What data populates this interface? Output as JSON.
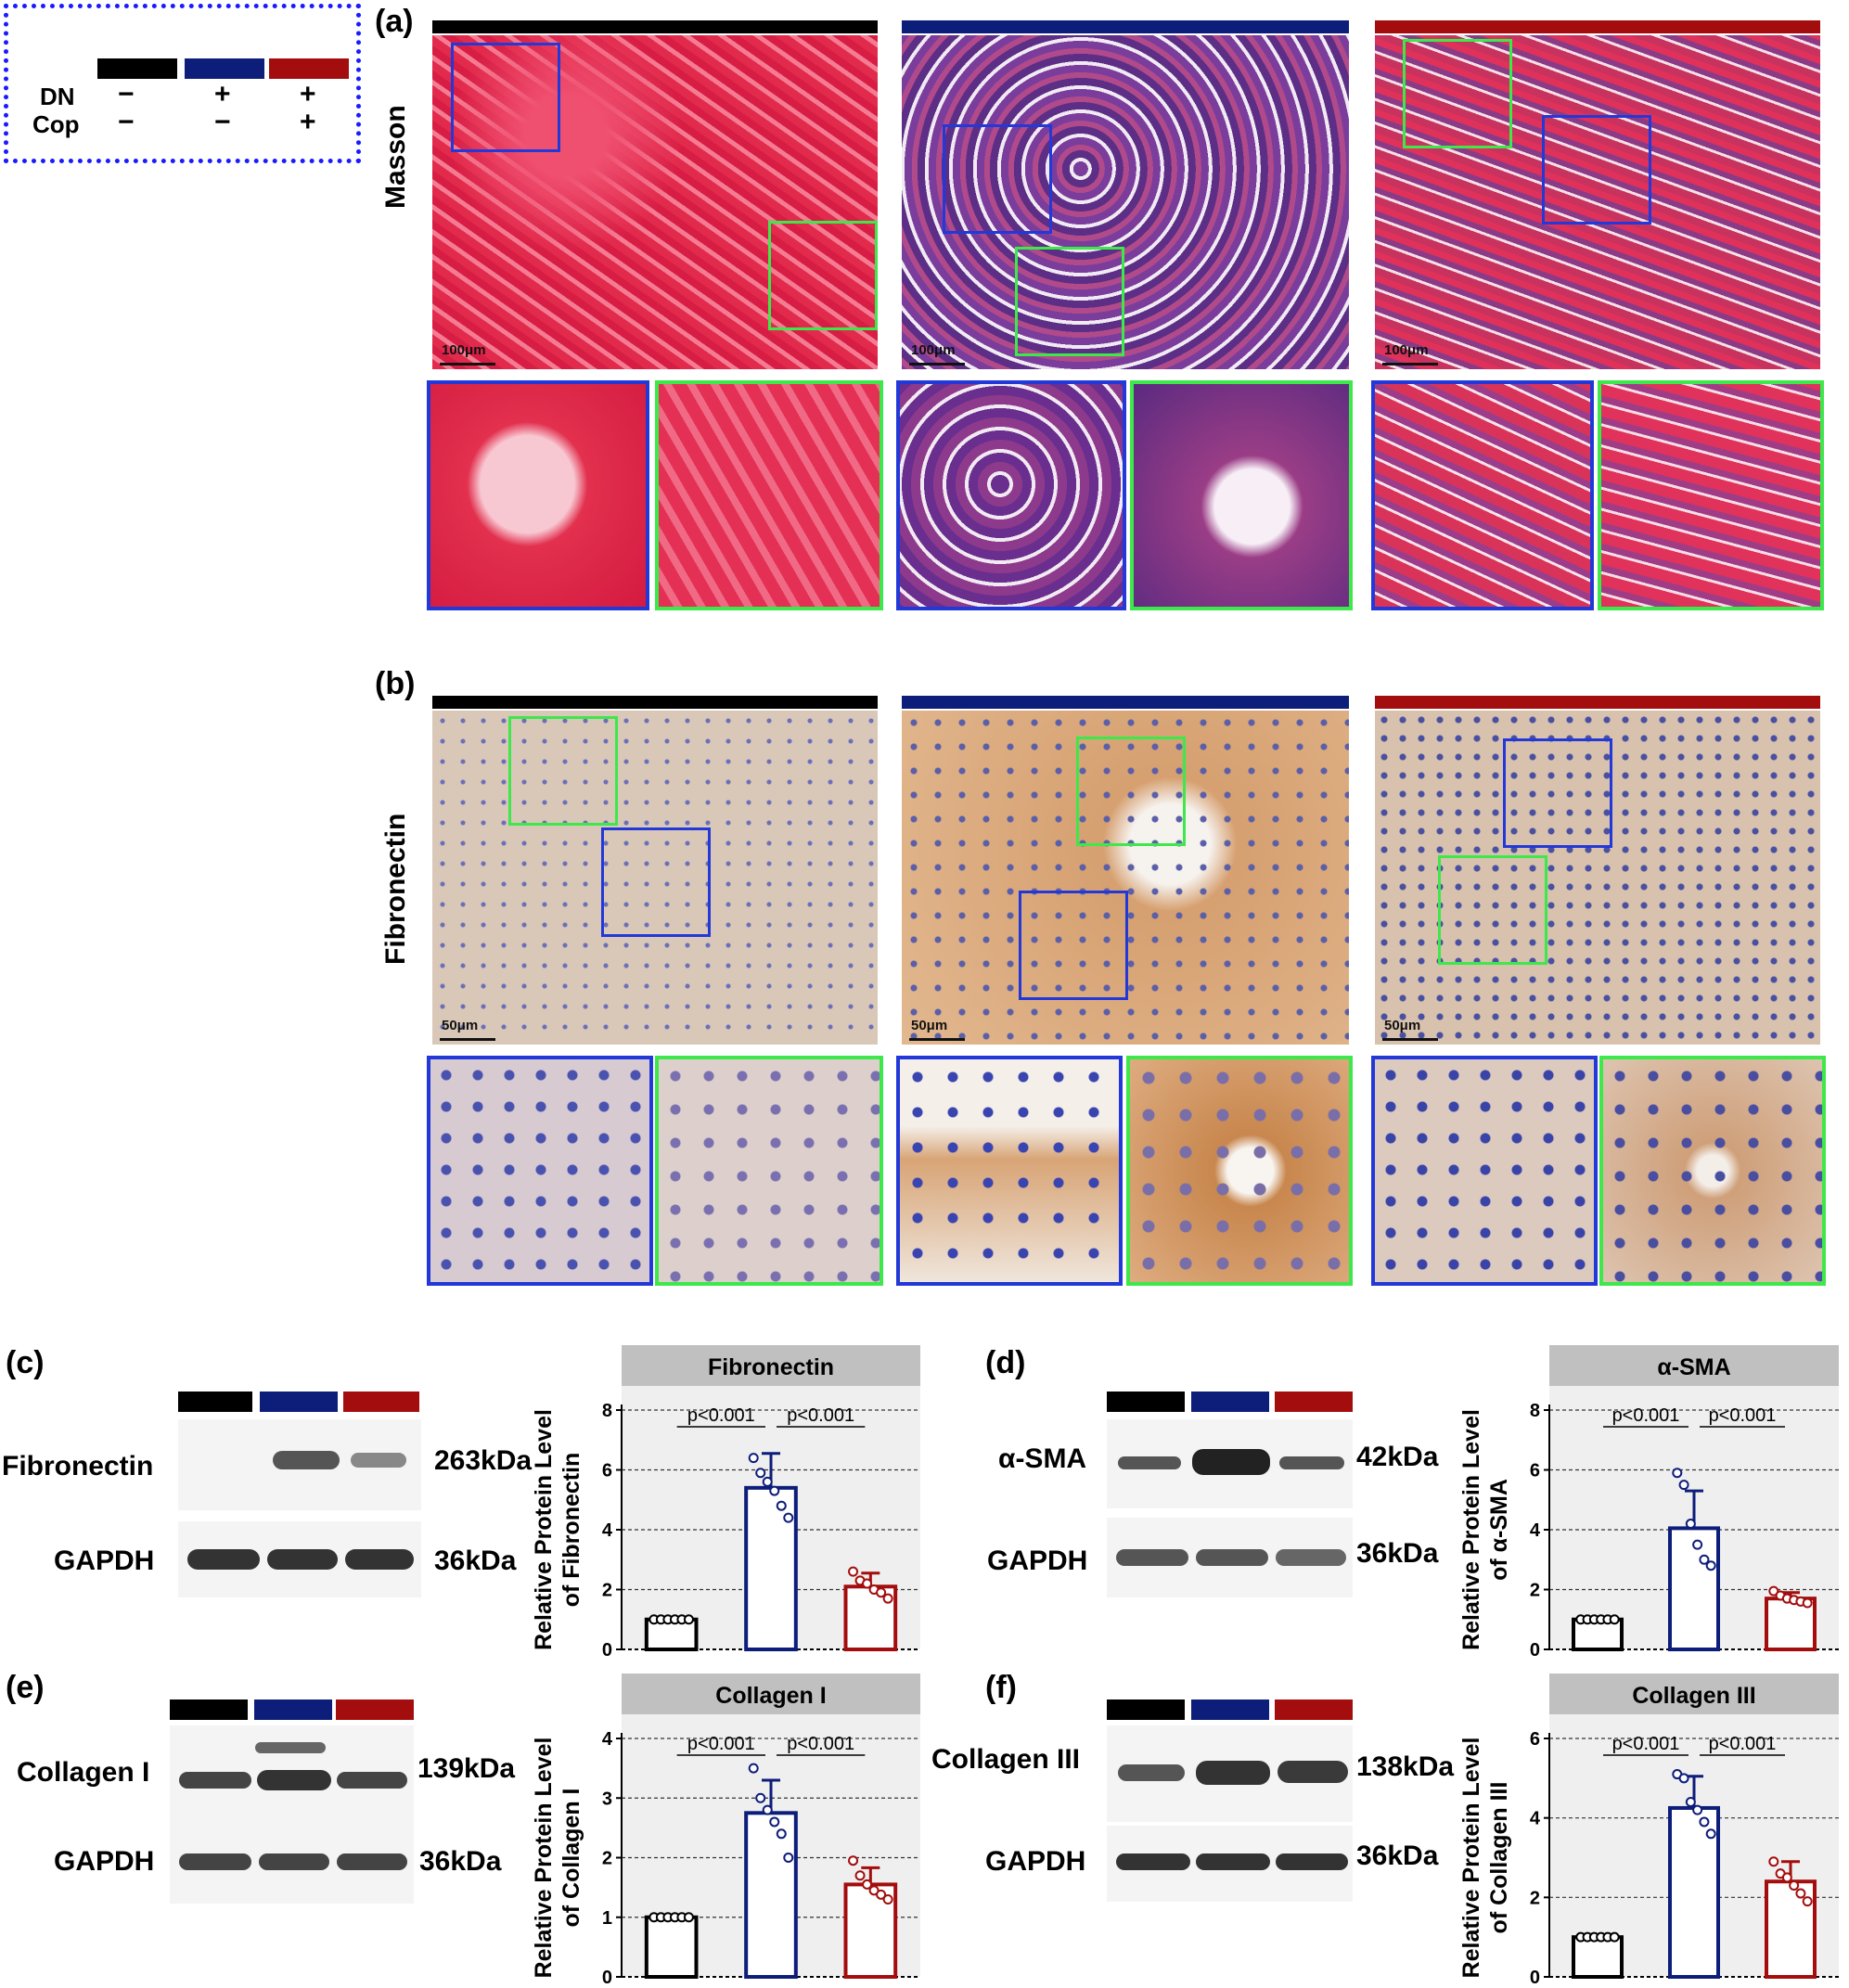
{
  "colors": {
    "control": "#000000",
    "dn": "#0d1d7a",
    "dn_cop": "#a30d0d",
    "inset_blue": "#2238d8",
    "inset_green": "#3de84a"
  },
  "legend": {
    "rows": [
      {
        "name": "DN",
        "values": [
          "−",
          "+",
          "+"
        ]
      },
      {
        "name": "Cop",
        "values": [
          "−",
          "−",
          "+"
        ]
      }
    ]
  },
  "panel_a": {
    "label": "(a)",
    "row_label": "Masson",
    "scale_labels": [
      "100μm",
      "100μm",
      "100μm"
    ]
  },
  "panel_b": {
    "label": "(b)",
    "row_label": "Fibronectin",
    "scale_labels": [
      "50μm",
      "50μm",
      "50μm"
    ]
  },
  "blots": {
    "c": {
      "label": "(c)",
      "target": "Fibronectin",
      "target_kda": "263kDa",
      "loading": "GAPDH",
      "loading_kda": "36kDa"
    },
    "d": {
      "label": "(d)",
      "target": "α-SMA",
      "target_kda": "42kDa",
      "loading": "GAPDH",
      "loading_kda": "36kDa"
    },
    "e": {
      "label": "(e)",
      "target": "Collagen I",
      "target_kda": "139kDa",
      "loading": "GAPDH",
      "loading_kda": "36kDa"
    },
    "f": {
      "label": "(f)",
      "target": "Collagen III",
      "target_kda": "138kDa",
      "loading": "GAPDH",
      "loading_kda": "36kDa"
    }
  },
  "chart_data": [
    {
      "type": "bar",
      "id": "c",
      "title": "Fibronectin",
      "ylabel": [
        "Relative Protein Level",
        "of Fibronectin"
      ],
      "ylim": [
        0,
        8
      ],
      "yticks": [
        0,
        2,
        4,
        6,
        8
      ],
      "grid": "dashed",
      "values": [
        1.0,
        5.4,
        2.1
      ],
      "errors": [
        0,
        1.15,
        0.45
      ],
      "points": [
        [
          1,
          1,
          1,
          1,
          1,
          1
        ],
        [
          6.4,
          5.9,
          5.6,
          5.3,
          4.8,
          4.4
        ],
        [
          2.6,
          2.3,
          2.2,
          2.0,
          1.9,
          1.7
        ]
      ],
      "annotations": [
        "p<0.001",
        "p<0.001"
      ]
    },
    {
      "type": "bar",
      "id": "d",
      "title": "α-SMA",
      "ylabel": [
        "Relative Protein Level",
        "of α-SMA"
      ],
      "ylim": [
        0,
        8
      ],
      "yticks": [
        0,
        2,
        4,
        6,
        8
      ],
      "grid": "dashed",
      "values": [
        1.0,
        4.05,
        1.7
      ],
      "errors": [
        0,
        1.25,
        0.2
      ],
      "points": [
        [
          1,
          1,
          1,
          1,
          1,
          1
        ],
        [
          5.9,
          5.5,
          4.2,
          3.5,
          3.0,
          2.8
        ],
        [
          1.95,
          1.8,
          1.7,
          1.65,
          1.6,
          1.55
        ]
      ],
      "annotations": [
        "p<0.001",
        "p<0.001"
      ]
    },
    {
      "type": "bar",
      "id": "e",
      "title": "Collagen I",
      "ylabel": [
        "Relative Protein Level",
        "of Collagen I"
      ],
      "ylim": [
        0,
        4
      ],
      "yticks": [
        0,
        1,
        2,
        3,
        4
      ],
      "grid": "dashed",
      "values": [
        1.0,
        2.75,
        1.55
      ],
      "errors": [
        0,
        0.55,
        0.28
      ],
      "points": [
        [
          1,
          1,
          1,
          1,
          1,
          1
        ],
        [
          3.5,
          3.0,
          2.8,
          2.6,
          2.4,
          2.0
        ],
        [
          1.95,
          1.7,
          1.55,
          1.45,
          1.38,
          1.3
        ]
      ],
      "annotations": [
        "p<0.001",
        "p<0.001"
      ]
    },
    {
      "type": "bar",
      "id": "f",
      "title": "Collagen III",
      "ylabel": [
        "Relative Protein Level",
        "of Collagen III"
      ],
      "ylim": [
        0,
        6
      ],
      "yticks": [
        0,
        2,
        4,
        6
      ],
      "grid": "dashed",
      "values": [
        1.0,
        4.25,
        2.4
      ],
      "errors": [
        0,
        0.8,
        0.5
      ],
      "points": [
        [
          1,
          1,
          1,
          1,
          1,
          1
        ],
        [
          5.1,
          5.0,
          4.4,
          4.2,
          3.9,
          3.6
        ],
        [
          2.9,
          2.6,
          2.5,
          2.3,
          2.1,
          1.9
        ]
      ],
      "annotations": [
        "p<0.001",
        "p<0.001"
      ]
    }
  ]
}
